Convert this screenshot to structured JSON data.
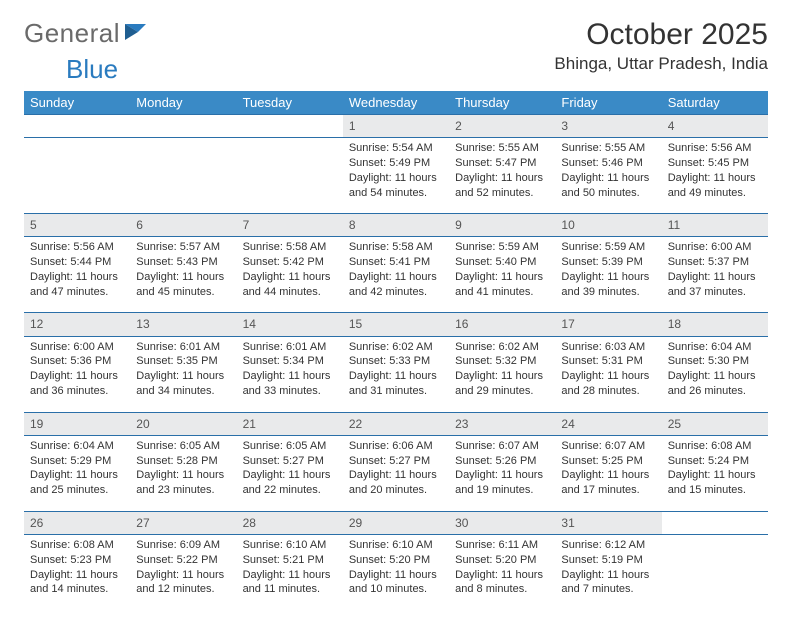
{
  "brand": {
    "part1": "General",
    "part2": "Blue"
  },
  "title": {
    "month": "October 2025",
    "location": "Bhinga, Uttar Pradesh, India"
  },
  "colors": {
    "header_bg": "#3a8ac6",
    "header_text": "#ffffff",
    "daynum_bg": "#e9eaeb",
    "row_border": "#2a6fa8",
    "text": "#333333",
    "brand_gray": "#6a6a6a",
    "brand_blue": "#2a7bbf"
  },
  "columns": [
    "Sunday",
    "Monday",
    "Tuesday",
    "Wednesday",
    "Thursday",
    "Friday",
    "Saturday"
  ],
  "weeks": [
    {
      "nums": [
        "",
        "",
        "",
        "1",
        "2",
        "3",
        "4"
      ],
      "info": [
        "",
        "",
        "",
        "Sunrise: 5:54 AM\nSunset: 5:49 PM\nDaylight: 11 hours and 54 minutes.",
        "Sunrise: 5:55 AM\nSunset: 5:47 PM\nDaylight: 11 hours and 52 minutes.",
        "Sunrise: 5:55 AM\nSunset: 5:46 PM\nDaylight: 11 hours and 50 minutes.",
        "Sunrise: 5:56 AM\nSunset: 5:45 PM\nDaylight: 11 hours and 49 minutes."
      ]
    },
    {
      "nums": [
        "5",
        "6",
        "7",
        "8",
        "9",
        "10",
        "11"
      ],
      "info": [
        "Sunrise: 5:56 AM\nSunset: 5:44 PM\nDaylight: 11 hours and 47 minutes.",
        "Sunrise: 5:57 AM\nSunset: 5:43 PM\nDaylight: 11 hours and 45 minutes.",
        "Sunrise: 5:58 AM\nSunset: 5:42 PM\nDaylight: 11 hours and 44 minutes.",
        "Sunrise: 5:58 AM\nSunset: 5:41 PM\nDaylight: 11 hours and 42 minutes.",
        "Sunrise: 5:59 AM\nSunset: 5:40 PM\nDaylight: 11 hours and 41 minutes.",
        "Sunrise: 5:59 AM\nSunset: 5:39 PM\nDaylight: 11 hours and 39 minutes.",
        "Sunrise: 6:00 AM\nSunset: 5:37 PM\nDaylight: 11 hours and 37 minutes."
      ]
    },
    {
      "nums": [
        "12",
        "13",
        "14",
        "15",
        "16",
        "17",
        "18"
      ],
      "info": [
        "Sunrise: 6:00 AM\nSunset: 5:36 PM\nDaylight: 11 hours and 36 minutes.",
        "Sunrise: 6:01 AM\nSunset: 5:35 PM\nDaylight: 11 hours and 34 minutes.",
        "Sunrise: 6:01 AM\nSunset: 5:34 PM\nDaylight: 11 hours and 33 minutes.",
        "Sunrise: 6:02 AM\nSunset: 5:33 PM\nDaylight: 11 hours and 31 minutes.",
        "Sunrise: 6:02 AM\nSunset: 5:32 PM\nDaylight: 11 hours and 29 minutes.",
        "Sunrise: 6:03 AM\nSunset: 5:31 PM\nDaylight: 11 hours and 28 minutes.",
        "Sunrise: 6:04 AM\nSunset: 5:30 PM\nDaylight: 11 hours and 26 minutes."
      ]
    },
    {
      "nums": [
        "19",
        "20",
        "21",
        "22",
        "23",
        "24",
        "25"
      ],
      "info": [
        "Sunrise: 6:04 AM\nSunset: 5:29 PM\nDaylight: 11 hours and 25 minutes.",
        "Sunrise: 6:05 AM\nSunset: 5:28 PM\nDaylight: 11 hours and 23 minutes.",
        "Sunrise: 6:05 AM\nSunset: 5:27 PM\nDaylight: 11 hours and 22 minutes.",
        "Sunrise: 6:06 AM\nSunset: 5:27 PM\nDaylight: 11 hours and 20 minutes.",
        "Sunrise: 6:07 AM\nSunset: 5:26 PM\nDaylight: 11 hours and 19 minutes.",
        "Sunrise: 6:07 AM\nSunset: 5:25 PM\nDaylight: 11 hours and 17 minutes.",
        "Sunrise: 6:08 AM\nSunset: 5:24 PM\nDaylight: 11 hours and 15 minutes."
      ]
    },
    {
      "nums": [
        "26",
        "27",
        "28",
        "29",
        "30",
        "31",
        ""
      ],
      "info": [
        "Sunrise: 6:08 AM\nSunset: 5:23 PM\nDaylight: 11 hours and 14 minutes.",
        "Sunrise: 6:09 AM\nSunset: 5:22 PM\nDaylight: 11 hours and 12 minutes.",
        "Sunrise: 6:10 AM\nSunset: 5:21 PM\nDaylight: 11 hours and 11 minutes.",
        "Sunrise: 6:10 AM\nSunset: 5:20 PM\nDaylight: 11 hours and 10 minutes.",
        "Sunrise: 6:11 AM\nSunset: 5:20 PM\nDaylight: 11 hours and 8 minutes.",
        "Sunrise: 6:12 AM\nSunset: 5:19 PM\nDaylight: 11 hours and 7 minutes.",
        ""
      ]
    }
  ]
}
